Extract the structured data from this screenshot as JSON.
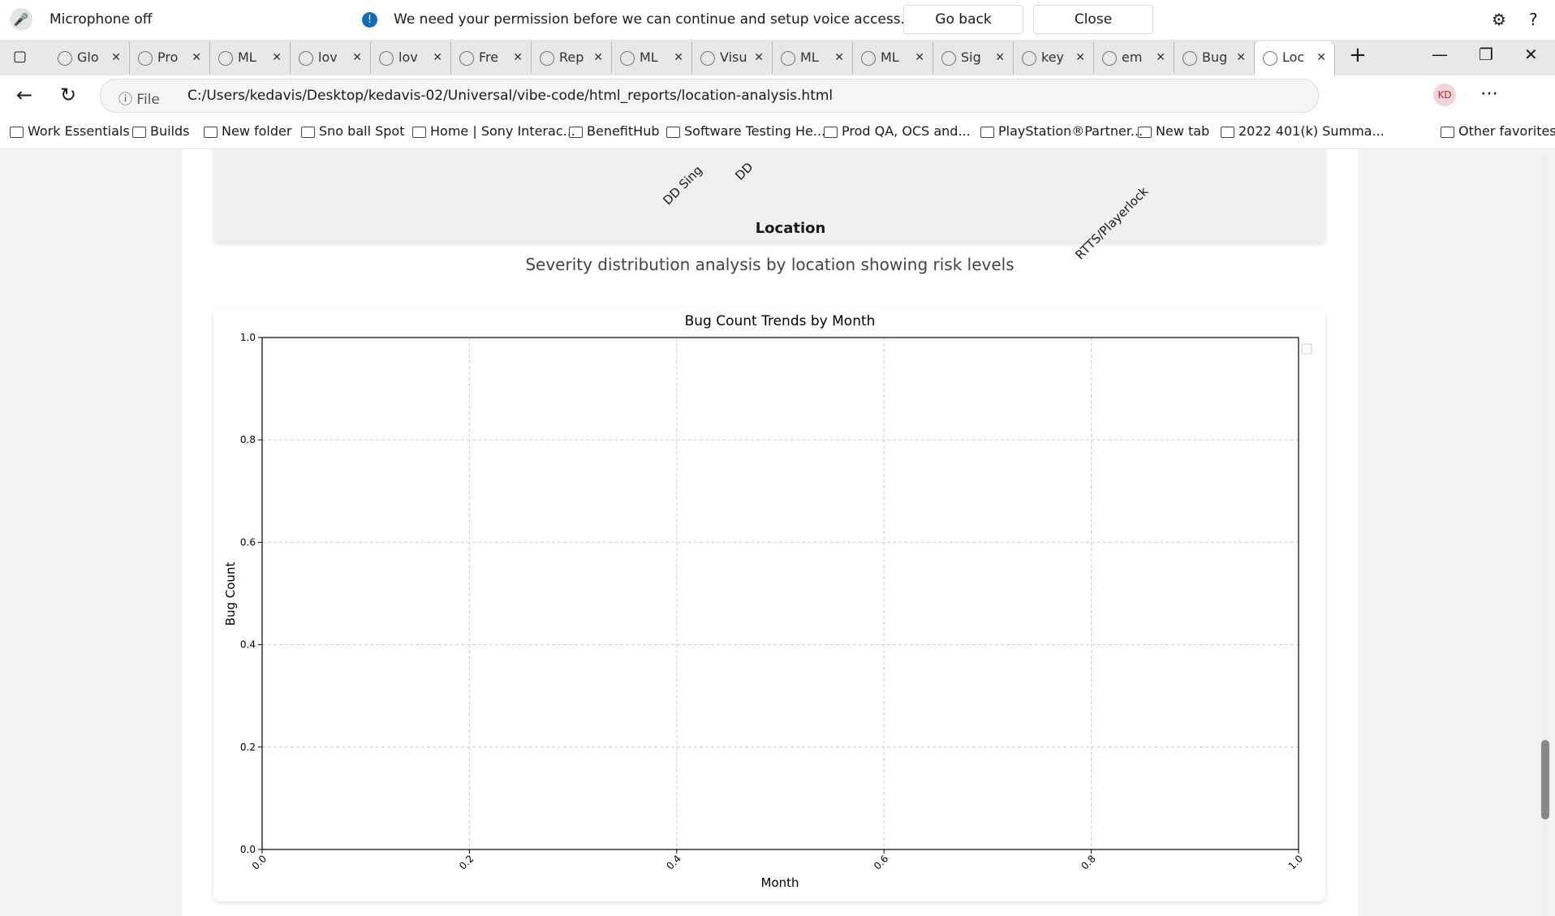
{
  "notification": {
    "mic": "Microphone off",
    "message": "We need your permission before we can continue and setup voice access.",
    "buttons": [
      "Go back",
      "Close"
    ]
  },
  "tabs": [
    "Glo",
    "Pro",
    "ML",
    "lov",
    "lov",
    "Fre",
    "Rep",
    "ML",
    "Visu",
    "ML",
    "ML",
    "Sig",
    "key",
    "em",
    "Bug",
    "Loc"
  ],
  "address": {
    "scheme": "File",
    "url": "C:/Users/kedavis/Desktop/kedavis-02/Universal/vibe-code/html_reports/location-analysis.html",
    "profile": "KD"
  },
  "bookmarks": [
    "Work Essentials",
    "Builds",
    "New folder",
    "Sno ball Spot",
    "Home | Sony Interac...",
    "BenefitHub",
    "Software Testing He...",
    "Prod QA, OCS and...",
    "PlayStation®Partner...",
    "New tab",
    "2022 401(k) Summa..."
  ],
  "other_favorites": "Other favorites",
  "previous_chart": {
    "x_labels": [
      "DD Sing",
      "DD",
      "RTTS/Playerlock"
    ],
    "xlabel": "Location"
  },
  "caption": "Severity distribution analysis by location showing risk levels",
  "chart_data": {
    "type": "line",
    "title": "Bug Count Trends by Month",
    "xlabel": "Month",
    "ylabel": "Bug Count",
    "xlim": [
      0,
      1
    ],
    "ylim": [
      0,
      1
    ],
    "xticks": [
      {
        "value": 0,
        "label": "0.0"
      },
      0.2,
      0.4,
      0.6,
      0.8,
      {
        "value": 1,
        "label": "1.0"
      }
    ],
    "yticks": [
      {
        "value": 0,
        "label": "0.0"
      },
      0.2,
      0.4,
      0.6,
      0.8,
      {
        "value": 1,
        "label": "1.0"
      }
    ],
    "grid": true,
    "legend": "upper right",
    "series": []
  }
}
